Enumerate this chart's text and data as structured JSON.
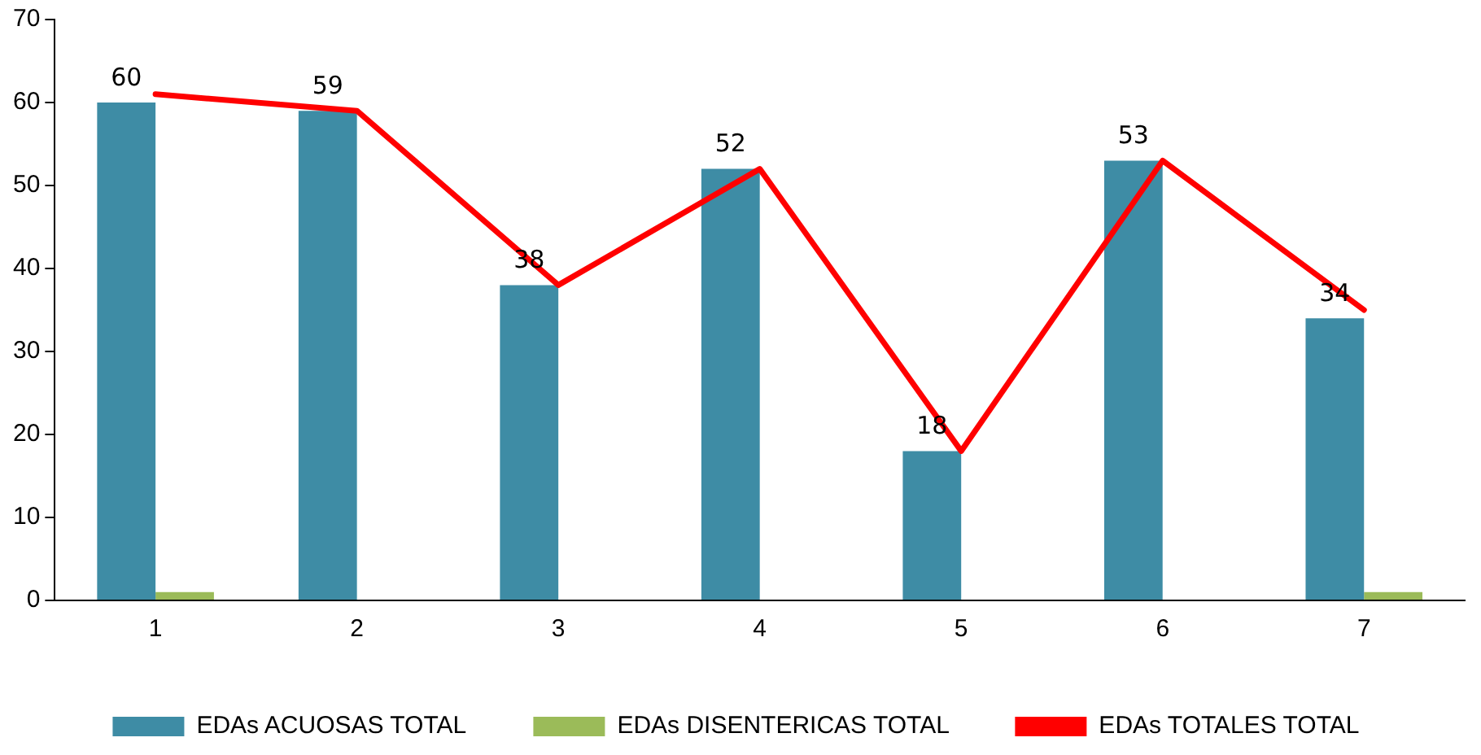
{
  "chart_data": {
    "type": "bar",
    "categories": [
      "1",
      "2",
      "3",
      "4",
      "5",
      "6",
      "7"
    ],
    "series": [
      {
        "name": "EDAs ACUOSAS TOTAL",
        "color": "#3e8ca5",
        "values": [
          60,
          59,
          38,
          52,
          18,
          53,
          34
        ],
        "value_labels": [
          "60",
          "59",
          "38",
          "52",
          "18",
          "53",
          "34"
        ]
      },
      {
        "name": "EDAs DISENTERICAS TOTAL",
        "color": "#9bbb59",
        "values": [
          1,
          0,
          0,
          0,
          0,
          0,
          1
        ]
      },
      {
        "name": "EDAs TOTALES TOTAL",
        "type": "line",
        "color": "#ff0000",
        "values": [
          61,
          59,
          38,
          52,
          18,
          53,
          35
        ]
      }
    ],
    "ylim": [
      0,
      70
    ],
    "yticks": [
      0,
      10,
      20,
      30,
      40,
      50,
      60,
      70
    ],
    "grid": false,
    "legend": "bottom",
    "marker": "none",
    "line_style": "solid"
  }
}
